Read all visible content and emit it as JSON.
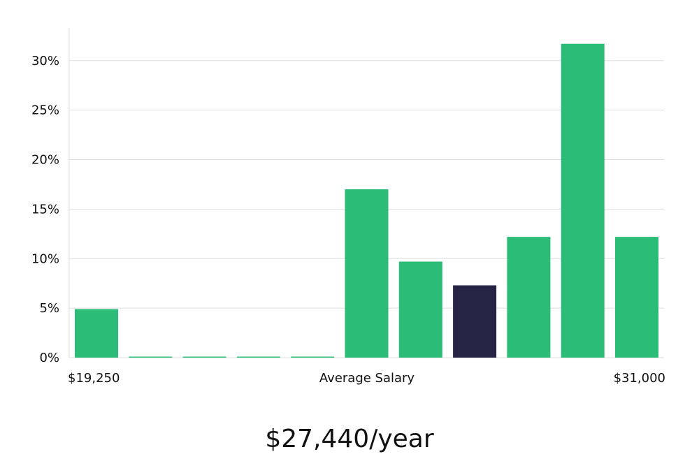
{
  "chart_data": {
    "type": "bar",
    "ylim": [
      0,
      33.3
    ],
    "y_ticks": [
      0,
      5,
      10,
      15,
      20,
      25,
      30
    ],
    "y_tick_labels": [
      "0%",
      "5%",
      "10%",
      "15%",
      "20%",
      "25%",
      "30%"
    ],
    "values": [
      4.9,
      0,
      0,
      0,
      0,
      17.0,
      9.7,
      7.3,
      12.2,
      31.7,
      12.2
    ],
    "highlight_index": 7,
    "x_labels": {
      "left": "$19,250",
      "center": "Average Salary",
      "right": "$31,000"
    },
    "grid": true,
    "colors": {
      "bar": "#2bbd77",
      "highlight": "#262445",
      "grid": "#dddddd",
      "axis": "#dddddd"
    }
  },
  "salary_label": "$27,440/year"
}
